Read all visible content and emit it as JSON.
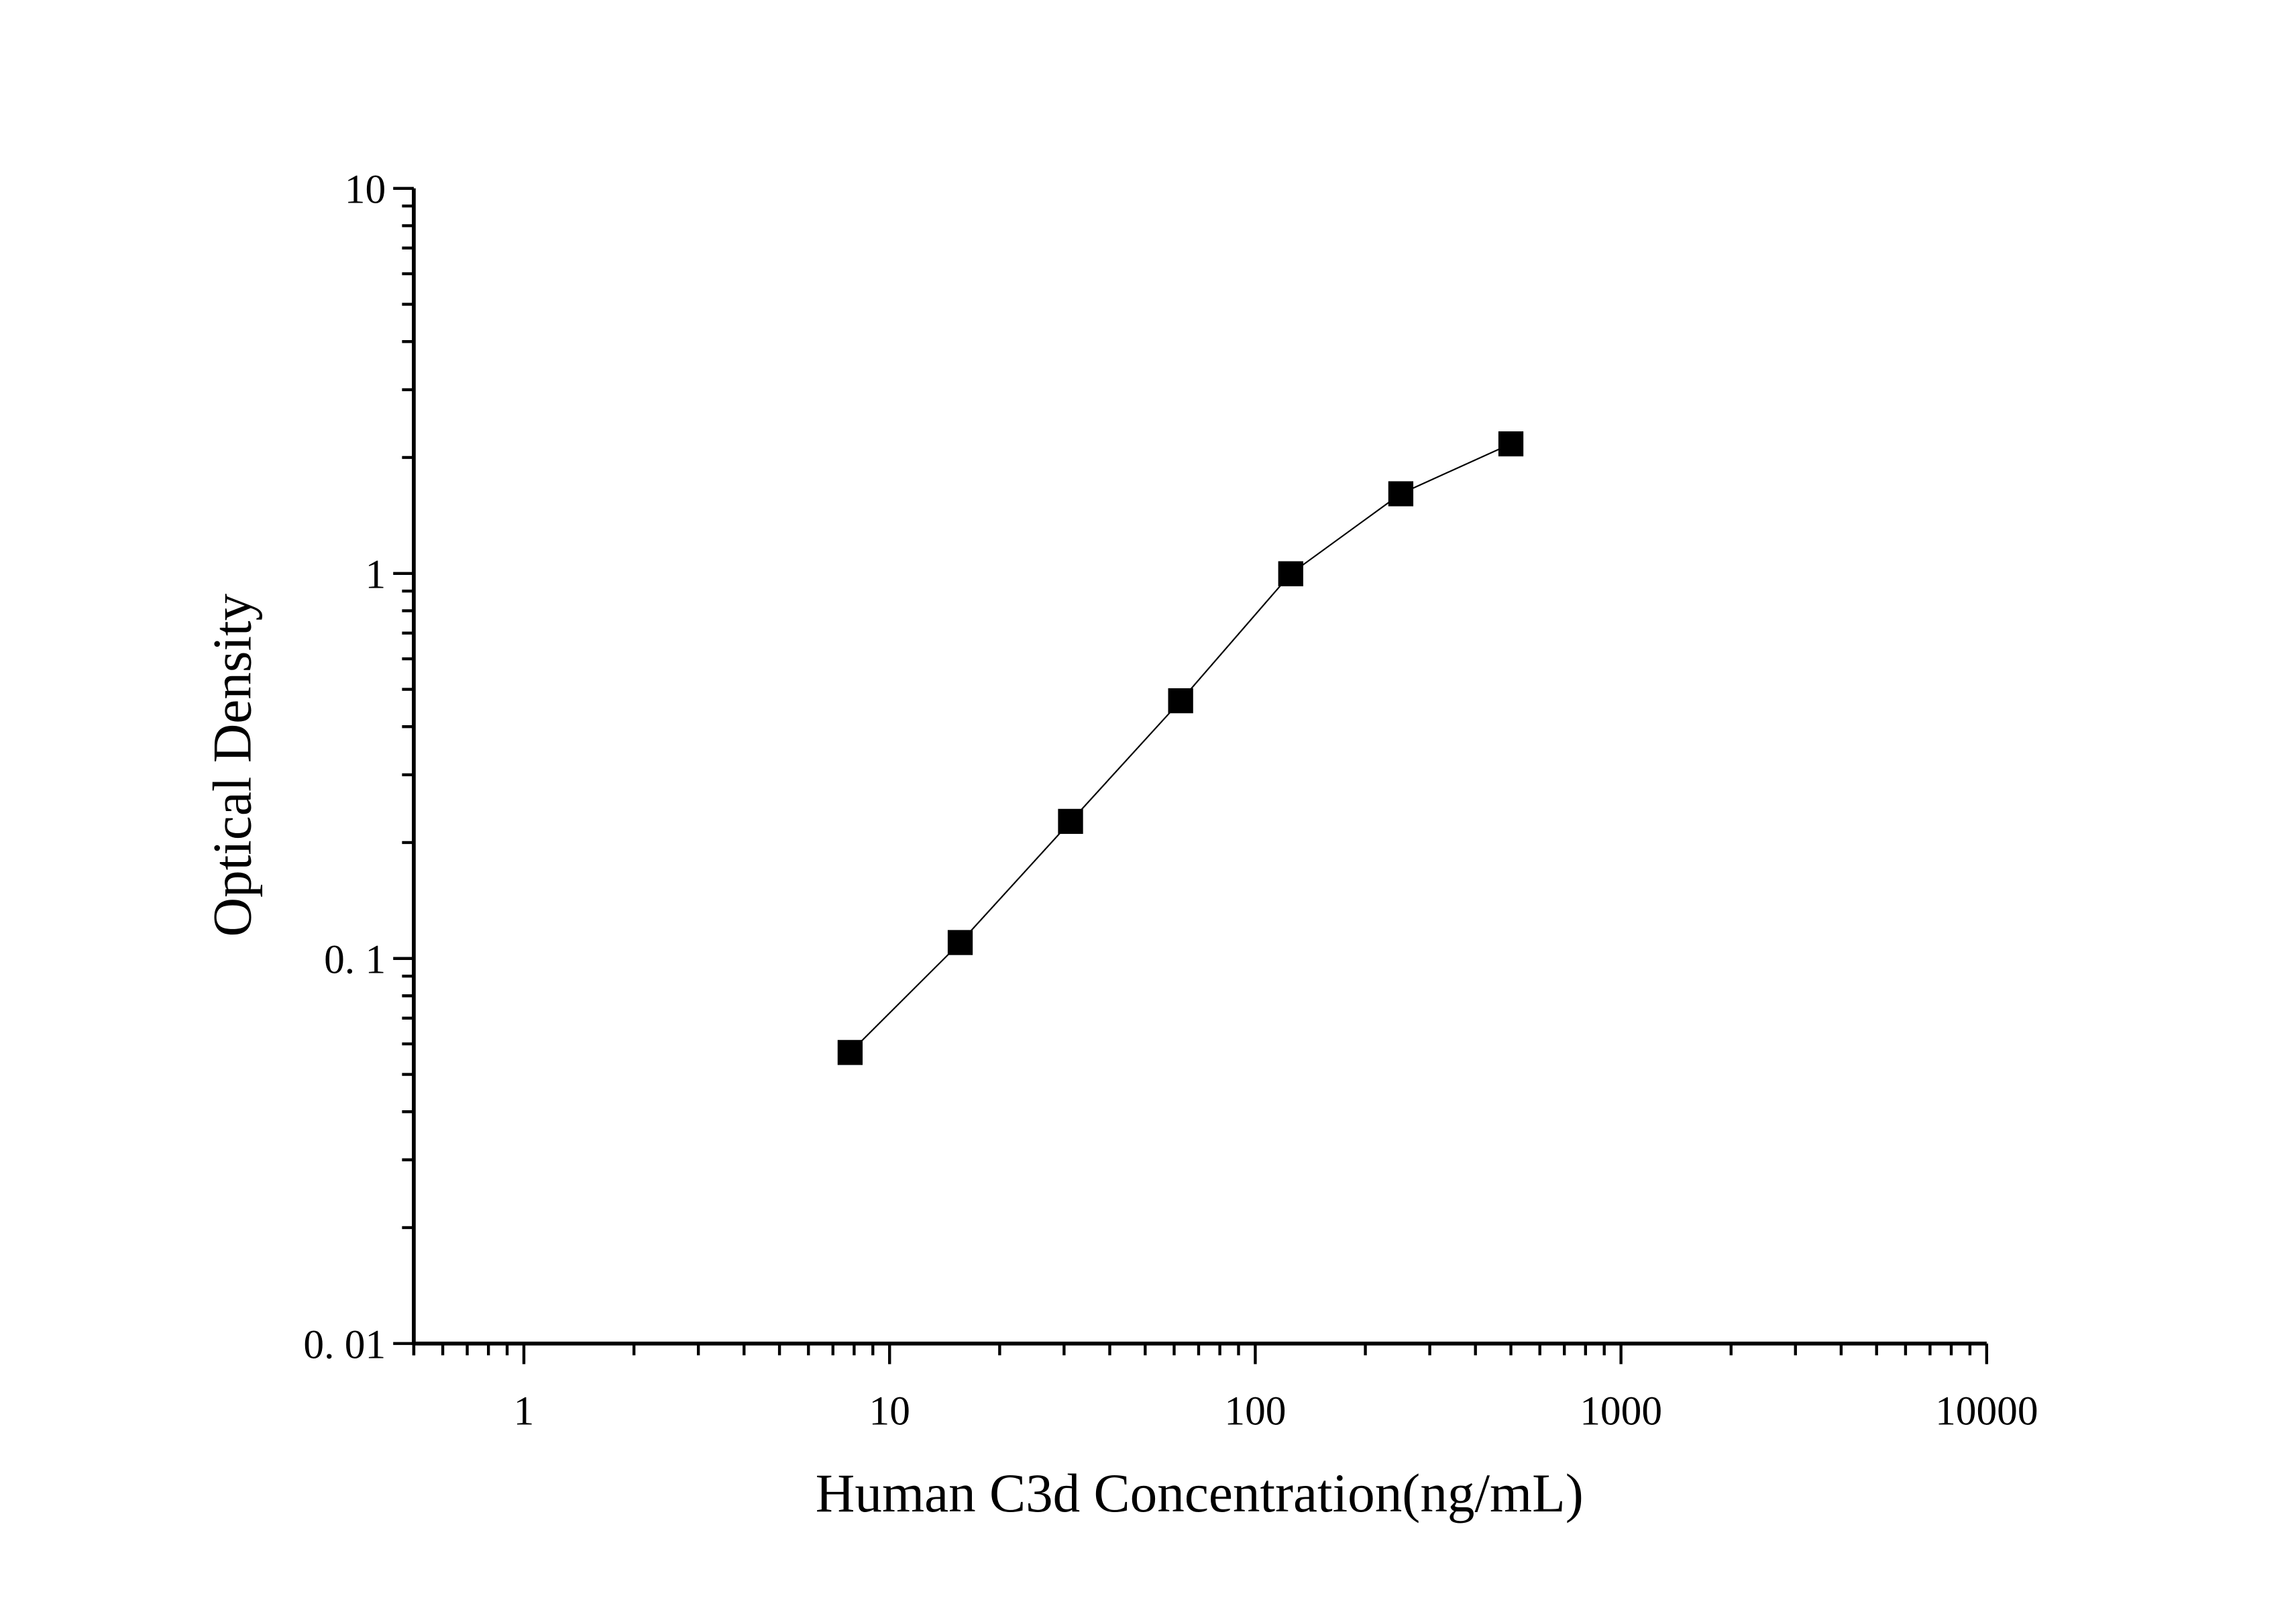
{
  "chart_data": {
    "type": "line",
    "title": "",
    "xlabel": "Human C3d Concentration(ng/mL)",
    "ylabel": "Optical Density",
    "x_scale": "log",
    "y_scale": "log",
    "xlim": [
      0.5,
      10000
    ],
    "ylim": [
      0.01,
      10
    ],
    "x_ticks": [
      1,
      10,
      100,
      1000,
      10000
    ],
    "x_tick_labels": [
      "1",
      "10",
      "100",
      "1000",
      "10000"
    ],
    "y_ticks": [
      0.01,
      0.1,
      1,
      10
    ],
    "y_tick_labels": [
      "0. 01",
      "0. 1",
      "1",
      "10"
    ],
    "grid": false,
    "legend": "none",
    "marker": "square",
    "color": "#000000",
    "series": [
      {
        "x": [
          7.8,
          15.6,
          31.25,
          62.5,
          125,
          250,
          500
        ],
        "y": [
          0.057,
          0.11,
          0.227,
          0.467,
          0.998,
          1.61,
          2.17
        ]
      }
    ]
  }
}
